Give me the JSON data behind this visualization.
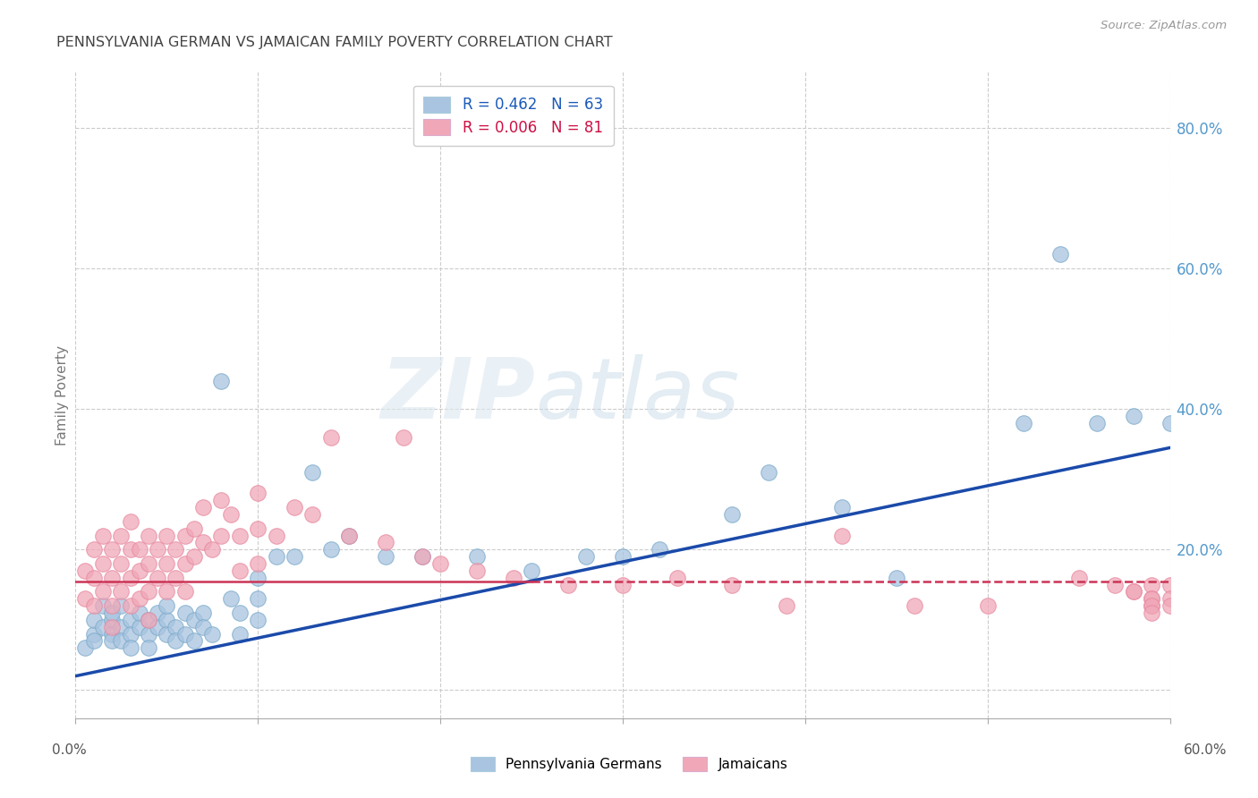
{
  "title": "PENNSYLVANIA GERMAN VS JAMAICAN FAMILY POVERTY CORRELATION CHART",
  "source": "Source: ZipAtlas.com",
  "ylabel": "Family Poverty",
  "xlim": [
    0.0,
    0.6
  ],
  "ylim": [
    -0.04,
    0.88
  ],
  "watermark_zip": "ZIP",
  "watermark_atlas": "atlas",
  "blue_color": "#a8c4e0",
  "pink_color": "#f0a8b8",
  "blue_edge_color": "#7aaaca",
  "pink_edge_color": "#e888a0",
  "blue_line_color": "#1a4aaa",
  "pink_line_color": "#cc3355",
  "background_color": "#ffffff",
  "grid_color": "#cccccc",
  "legend_blue_text_color": "#1a5ab8",
  "legend_pink_text_color": "#cc1144",
  "ytick_color": "#5599cc",
  "blue_line_start_y": 0.02,
  "blue_line_end_y": 0.345,
  "pink_line_y": 0.155,
  "blue_scatter_x": [
    0.005,
    0.01,
    0.01,
    0.01,
    0.015,
    0.015,
    0.02,
    0.02,
    0.02,
    0.02,
    0.025,
    0.025,
    0.025,
    0.03,
    0.03,
    0.03,
    0.035,
    0.035,
    0.04,
    0.04,
    0.04,
    0.045,
    0.045,
    0.05,
    0.05,
    0.05,
    0.055,
    0.055,
    0.06,
    0.06,
    0.065,
    0.065,
    0.07,
    0.07,
    0.075,
    0.08,
    0.085,
    0.09,
    0.09,
    0.1,
    0.1,
    0.1,
    0.11,
    0.12,
    0.13,
    0.14,
    0.15,
    0.17,
    0.19,
    0.22,
    0.25,
    0.28,
    0.3,
    0.32,
    0.36,
    0.38,
    0.42,
    0.45,
    0.52,
    0.54,
    0.56,
    0.58,
    0.6
  ],
  "blue_scatter_y": [
    0.06,
    0.08,
    0.1,
    0.07,
    0.09,
    0.12,
    0.1,
    0.08,
    0.11,
    0.07,
    0.09,
    0.12,
    0.07,
    0.1,
    0.08,
    0.06,
    0.09,
    0.11,
    0.1,
    0.08,
    0.06,
    0.11,
    0.09,
    0.1,
    0.08,
    0.12,
    0.09,
    0.07,
    0.11,
    0.08,
    0.1,
    0.07,
    0.11,
    0.09,
    0.08,
    0.44,
    0.13,
    0.11,
    0.08,
    0.16,
    0.13,
    0.1,
    0.19,
    0.19,
    0.31,
    0.2,
    0.22,
    0.19,
    0.19,
    0.19,
    0.17,
    0.19,
    0.19,
    0.2,
    0.25,
    0.31,
    0.26,
    0.16,
    0.38,
    0.62,
    0.38,
    0.39,
    0.38
  ],
  "pink_scatter_x": [
    0.005,
    0.005,
    0.01,
    0.01,
    0.01,
    0.015,
    0.015,
    0.015,
    0.02,
    0.02,
    0.02,
    0.02,
    0.025,
    0.025,
    0.025,
    0.03,
    0.03,
    0.03,
    0.03,
    0.035,
    0.035,
    0.035,
    0.04,
    0.04,
    0.04,
    0.04,
    0.045,
    0.045,
    0.05,
    0.05,
    0.05,
    0.055,
    0.055,
    0.06,
    0.06,
    0.06,
    0.065,
    0.065,
    0.07,
    0.07,
    0.075,
    0.08,
    0.08,
    0.085,
    0.09,
    0.09,
    0.1,
    0.1,
    0.1,
    0.11,
    0.12,
    0.13,
    0.14,
    0.15,
    0.17,
    0.18,
    0.19,
    0.2,
    0.22,
    0.24,
    0.27,
    0.3,
    0.33,
    0.36,
    0.39,
    0.42,
    0.46,
    0.5,
    0.55,
    0.57,
    0.58,
    0.58,
    0.59,
    0.59,
    0.59,
    0.59,
    0.59,
    0.59,
    0.6,
    0.6,
    0.6
  ],
  "pink_scatter_y": [
    0.17,
    0.13,
    0.2,
    0.16,
    0.12,
    0.22,
    0.18,
    0.14,
    0.2,
    0.16,
    0.12,
    0.09,
    0.22,
    0.18,
    0.14,
    0.24,
    0.2,
    0.16,
    0.12,
    0.2,
    0.17,
    0.13,
    0.22,
    0.18,
    0.14,
    0.1,
    0.2,
    0.16,
    0.22,
    0.18,
    0.14,
    0.2,
    0.16,
    0.22,
    0.18,
    0.14,
    0.23,
    0.19,
    0.26,
    0.21,
    0.2,
    0.27,
    0.22,
    0.25,
    0.22,
    0.17,
    0.28,
    0.23,
    0.18,
    0.22,
    0.26,
    0.25,
    0.36,
    0.22,
    0.21,
    0.36,
    0.19,
    0.18,
    0.17,
    0.16,
    0.15,
    0.15,
    0.16,
    0.15,
    0.12,
    0.22,
    0.12,
    0.12,
    0.16,
    0.15,
    0.14,
    0.14,
    0.15,
    0.13,
    0.12,
    0.13,
    0.12,
    0.11,
    0.15,
    0.13,
    0.12
  ]
}
